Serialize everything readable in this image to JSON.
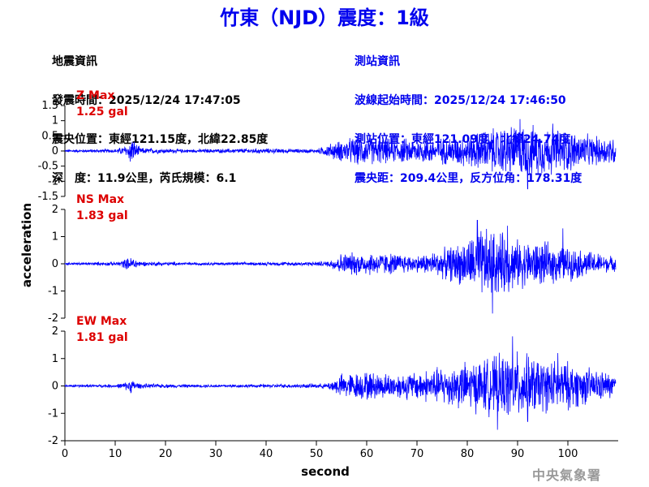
{
  "title": "竹東（NJD）震度：1級",
  "quake_info": {
    "heading": "地震資訊",
    "origin_time": "發震時間：2025/12/24 17:47:05",
    "epicenter": "震央位置：東經121.15度，北緯22.85度",
    "depth_magnitude": "深　度：11.9公里，芮氏規模：6.1"
  },
  "station_info": {
    "heading": "測站資訊",
    "wave_start": "波線起始時間：2025/12/24 17:46:50",
    "location": "測站位置：東經121.09度，北緯24.74度",
    "distance": "震央距：209.4公里，反方位角：178.31度"
  },
  "logo_text": "中央氣象署",
  "colors": {
    "title": "#0000ee",
    "trace": "#0000ff",
    "max_label": "#dd0000",
    "axis": "#000000",
    "logo": "#999999"
  },
  "chart_data": [
    {
      "type": "line",
      "component": "Z",
      "max_label": "Z Max",
      "max_value": "1.25 gal",
      "peak_abs": 1.25,
      "ylim": [
        -1.5,
        1.5
      ],
      "yticks": [
        "-1.5",
        "-1",
        "-0.5",
        "0",
        "0.5",
        "1",
        "1.5"
      ],
      "envelope": [
        [
          0,
          0.05
        ],
        [
          10,
          0.07
        ],
        [
          12,
          0.2
        ],
        [
          13.5,
          0.45
        ],
        [
          15,
          0.12
        ],
        [
          25,
          0.06
        ],
        [
          37,
          0.1
        ],
        [
          50,
          0.07
        ],
        [
          53,
          0.3
        ],
        [
          58,
          0.55
        ],
        [
          65,
          0.45
        ],
        [
          75,
          0.5
        ],
        [
          80,
          0.6
        ],
        [
          85,
          0.85
        ],
        [
          90,
          1.0
        ],
        [
          95,
          0.9
        ],
        [
          100,
          0.8
        ],
        [
          105,
          0.55
        ],
        [
          109,
          0.55
        ]
      ],
      "spikes": [
        [
          13,
          -0.35
        ],
        [
          13.4,
          0.3
        ],
        [
          90.5,
          1.05
        ],
        [
          92,
          -1.25
        ],
        [
          97,
          0.9
        ]
      ]
    },
    {
      "type": "line",
      "component": "NS",
      "max_label": "NS Max",
      "max_value": "1.83 gal",
      "peak_abs": 1.83,
      "ylim": [
        -2,
        2
      ],
      "yticks": [
        "-2",
        "-1",
        "0",
        "1",
        "2"
      ],
      "envelope": [
        [
          0,
          0.05
        ],
        [
          10,
          0.08
        ],
        [
          12,
          0.2
        ],
        [
          13.5,
          0.3
        ],
        [
          15,
          0.1
        ],
        [
          25,
          0.06
        ],
        [
          40,
          0.07
        ],
        [
          52,
          0.1
        ],
        [
          55,
          0.45
        ],
        [
          60,
          0.5
        ],
        [
          65,
          0.45
        ],
        [
          70,
          0.35
        ],
        [
          75,
          0.6
        ],
        [
          80,
          1.0
        ],
        [
          83,
          1.5
        ],
        [
          87,
          1.3
        ],
        [
          90,
          1.0
        ],
        [
          95,
          0.9
        ],
        [
          100,
          0.7
        ],
        [
          105,
          0.5
        ],
        [
          109,
          0.3
        ]
      ],
      "spikes": [
        [
          82,
          1.6
        ],
        [
          85,
          -1.83
        ],
        [
          88,
          1.4
        ],
        [
          99,
          1.3
        ]
      ]
    },
    {
      "type": "line",
      "component": "EW",
      "max_label": "EW Max",
      "max_value": "1.81 gal",
      "peak_abs": 1.81,
      "ylim": [
        -2,
        2
      ],
      "yticks": [
        "-2",
        "-1",
        "0",
        "1",
        "2"
      ],
      "envelope": [
        [
          0,
          0.05
        ],
        [
          10,
          0.07
        ],
        [
          12,
          0.15
        ],
        [
          13,
          0.3
        ],
        [
          15,
          0.1
        ],
        [
          25,
          0.06
        ],
        [
          40,
          0.07
        ],
        [
          52,
          0.1
        ],
        [
          55,
          0.5
        ],
        [
          60,
          0.6
        ],
        [
          65,
          0.5
        ],
        [
          70,
          0.6
        ],
        [
          75,
          0.8
        ],
        [
          80,
          1.0
        ],
        [
          85,
          1.2
        ],
        [
          90,
          1.4
        ],
        [
          95,
          1.1
        ],
        [
          100,
          1.0
        ],
        [
          105,
          0.7
        ],
        [
          109,
          0.5
        ]
      ],
      "spikes": [
        [
          86,
          -1.6
        ],
        [
          89,
          1.81
        ],
        [
          92,
          -1.3
        ],
        [
          98,
          1.2
        ]
      ]
    }
  ],
  "x_axis": {
    "label": "second",
    "xlim": [
      0,
      110
    ],
    "ticks": [
      "0",
      "10",
      "20",
      "30",
      "40",
      "50",
      "60",
      "70",
      "80",
      "90",
      "100"
    ]
  },
  "y_axis_label": "acceleration"
}
